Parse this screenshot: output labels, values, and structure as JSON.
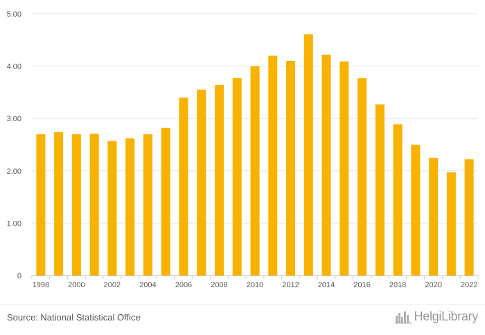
{
  "chart_data": {
    "type": "bar",
    "title": "",
    "xlabel": "",
    "ylabel": "",
    "categories": [
      "1998",
      "1999",
      "2000",
      "2001",
      "2002",
      "2003",
      "2004",
      "2005",
      "2006",
      "2007",
      "2008",
      "2009",
      "2010",
      "2011",
      "2012",
      "2013",
      "2014",
      "2015",
      "2016",
      "2017",
      "2018",
      "2019",
      "2020",
      "2021",
      "2022"
    ],
    "x_tick_labels": [
      "1998",
      "2000",
      "2002",
      "2004",
      "2006",
      "2008",
      "2010",
      "2012",
      "2014",
      "2016",
      "2018",
      "2020",
      "2022"
    ],
    "values": [
      2.7,
      2.74,
      2.7,
      2.71,
      2.57,
      2.62,
      2.7,
      2.82,
      3.4,
      3.55,
      3.64,
      3.77,
      4.0,
      4.2,
      4.1,
      4.61,
      4.22,
      4.09,
      3.77,
      3.27,
      2.89,
      2.5,
      2.25,
      1.97,
      2.22
    ],
    "ylim": [
      0,
      5
    ],
    "y_ticks": [
      0,
      1,
      2,
      3,
      4,
      5
    ],
    "y_tick_labels": [
      "0",
      "1.00",
      "2.00",
      "3.00",
      "4.00",
      "5.00"
    ],
    "grid": true,
    "legend": "none",
    "bar_color": "#f9b200",
    "grid_color": "#e6e6e6"
  },
  "footer": {
    "source": "Source: National Statistical Office",
    "brand": "HelgiLibrary",
    "brand_icon": "city-skyline-icon"
  }
}
